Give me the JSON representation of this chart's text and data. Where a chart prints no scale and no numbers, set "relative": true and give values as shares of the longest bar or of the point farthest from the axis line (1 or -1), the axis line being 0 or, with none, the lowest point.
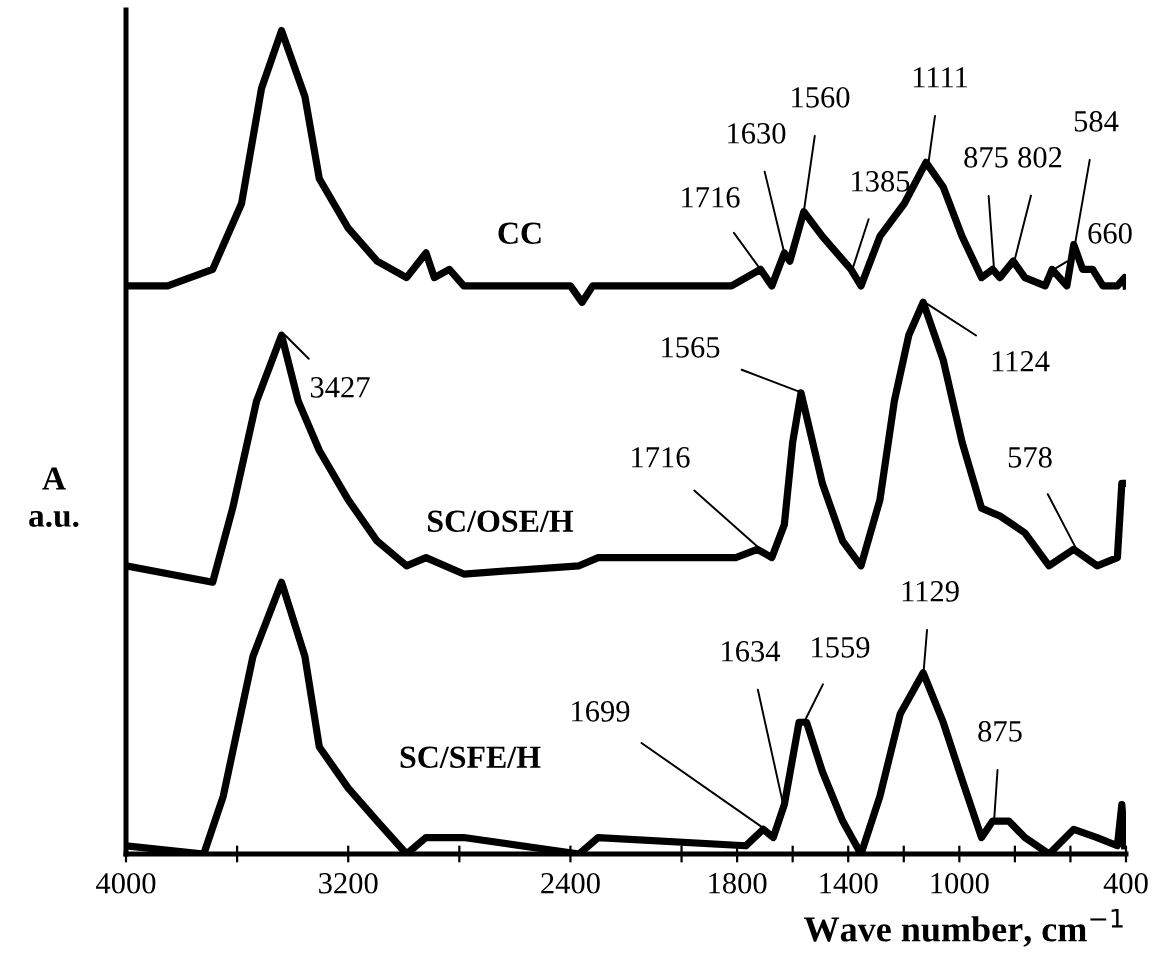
{
  "chart_data": {
    "type": "line",
    "relative": true,
    "xlabel": "Wave number, cm$^{−1}$",
    "ylabel": "A\na.u.",
    "xlim": [
      4000,
      400
    ],
    "xticks": [
      4000,
      {
        "value": 3600,
        "label": null
      },
      3200,
      {
        "value": 2800,
        "label": null
      },
      2400,
      {
        "value": 2000,
        "label": null
      },
      1800,
      {
        "value": 1600,
        "label": null
      },
      1400,
      {
        "value": 1200,
        "label": null
      },
      1000,
      {
        "value": 800,
        "label": null
      },
      {
        "value": 600,
        "label": null
      },
      400
    ],
    "series": [
      {
        "name": "CC",
        "color": "#000000",
        "x": [
          4000,
          3850,
          3688,
          3584,
          3512,
          3440,
          3356,
          3304,
          3200,
          3096,
          2990,
          2920,
          2890,
          2836,
          2784,
          2400,
          2358,
          2320,
          1820,
          1716,
          1675,
          1630,
          1610,
          1560,
          1493,
          1390,
          1354,
          1286,
          1198,
          1120,
          1058,
          990,
          920,
          880,
          854,
          806,
          764,
          691,
          666,
          613,
          588,
          556,
          520,
          483,
          431,
          405,
          400
        ],
        "values": [
          0.69,
          0.69,
          0.71,
          0.79,
          0.93,
          1.0,
          0.92,
          0.82,
          0.76,
          0.72,
          0.7,
          0.73,
          0.7,
          0.71,
          0.69,
          0.69,
          0.67,
          0.69,
          0.69,
          0.71,
          0.69,
          0.73,
          0.72,
          0.78,
          0.75,
          0.71,
          0.69,
          0.75,
          0.79,
          0.84,
          0.81,
          0.75,
          0.7,
          0.71,
          0.7,
          0.72,
          0.7,
          0.69,
          0.71,
          0.69,
          0.74,
          0.71,
          0.71,
          0.69,
          0.69,
          0.7,
          0.69
        ]
      },
      {
        "name": "SC/OSE/H",
        "color": "#000000",
        "x": [
          4000,
          3688,
          3616,
          3530,
          3440,
          3380,
          3304,
          3200,
          3096,
          2990,
          2920,
          2784,
          2369,
          2300,
          1805,
          1727,
          1675,
          1630,
          1600,
          1570,
          1493,
          1420,
          1354,
          1286,
          1234,
          1182,
          1130,
          1058,
          990,
          920,
          851,
          764,
          677,
          588,
          504,
          431,
          415,
          405
        ],
        "values": [
          0.35,
          0.33,
          0.42,
          0.55,
          0.63,
          0.55,
          0.49,
          0.43,
          0.38,
          0.35,
          0.36,
          0.34,
          0.35,
          0.36,
          0.36,
          0.37,
          0.36,
          0.4,
          0.5,
          0.56,
          0.45,
          0.38,
          0.35,
          0.43,
          0.55,
          0.63,
          0.67,
          0.6,
          0.5,
          0.42,
          0.41,
          0.39,
          0.35,
          0.37,
          0.35,
          0.36,
          0.45,
          0.45
        ]
      },
      {
        "name": "SC/SFE/H",
        "color": "#000000",
        "x": [
          4000,
          3720,
          3650,
          3543,
          3440,
          3356,
          3304,
          3200,
          3096,
          2990,
          2920,
          2784,
          2369,
          2300,
          1769,
          1706,
          1670,
          1630,
          1577,
          1550,
          1493,
          1420,
          1354,
          1286,
          1213,
          1130,
          1058,
          990,
          920,
          880,
          822,
          764,
          677,
          588,
          504,
          431,
          415,
          405
        ],
        "values": [
          0.01,
          0.0,
          0.07,
          0.24,
          0.33,
          0.24,
          0.13,
          0.08,
          0.04,
          0.0,
          0.02,
          0.02,
          0.0,
          0.02,
          0.01,
          0.03,
          0.02,
          0.06,
          0.16,
          0.16,
          0.1,
          0.04,
          0.0,
          0.07,
          0.17,
          0.22,
          0.16,
          0.09,
          0.02,
          0.04,
          0.04,
          0.02,
          0.0,
          0.03,
          0.02,
          0.01,
          0.06,
          0.01
        ]
      }
    ],
    "annotations": [
      {
        "text": "1716",
        "x": 1716,
        "y": 0.71
      },
      {
        "text": "1630",
        "x": 1630,
        "y": 0.73
      },
      {
        "text": "1560",
        "x": 1560,
        "y": 0.78
      },
      {
        "text": "1385",
        "x": 1385,
        "y": 0.71
      },
      {
        "text": "1111",
        "x": 1111,
        "y": 0.84
      },
      {
        "text": "875",
        "x": 875,
        "y": 0.71
      },
      {
        "text": "802",
        "x": 802,
        "y": 0.72
      },
      {
        "text": "660",
        "x": 660,
        "y": 0.71
      },
      {
        "text": "584",
        "x": 584,
        "y": 0.74
      },
      {
        "text": "3427",
        "x": 3427,
        "y": 0.63
      },
      {
        "text": "1565",
        "x": 1565,
        "y": 0.56
      },
      {
        "text": "1124",
        "x": 1124,
        "y": 0.67
      },
      {
        "text": "1716",
        "x": 1716,
        "y": 0.37
      },
      {
        "text": "578",
        "x": 578,
        "y": 0.37
      },
      {
        "text": "1129",
        "x": 1129,
        "y": 0.22
      },
      {
        "text": "1634",
        "x": 1634,
        "y": 0.06
      },
      {
        "text": "1559",
        "x": 1559,
        "y": 0.16
      },
      {
        "text": "1699",
        "x": 1699,
        "y": 0.03
      },
      {
        "text": "875",
        "x": 875,
        "y": 0.04
      }
    ]
  }
}
